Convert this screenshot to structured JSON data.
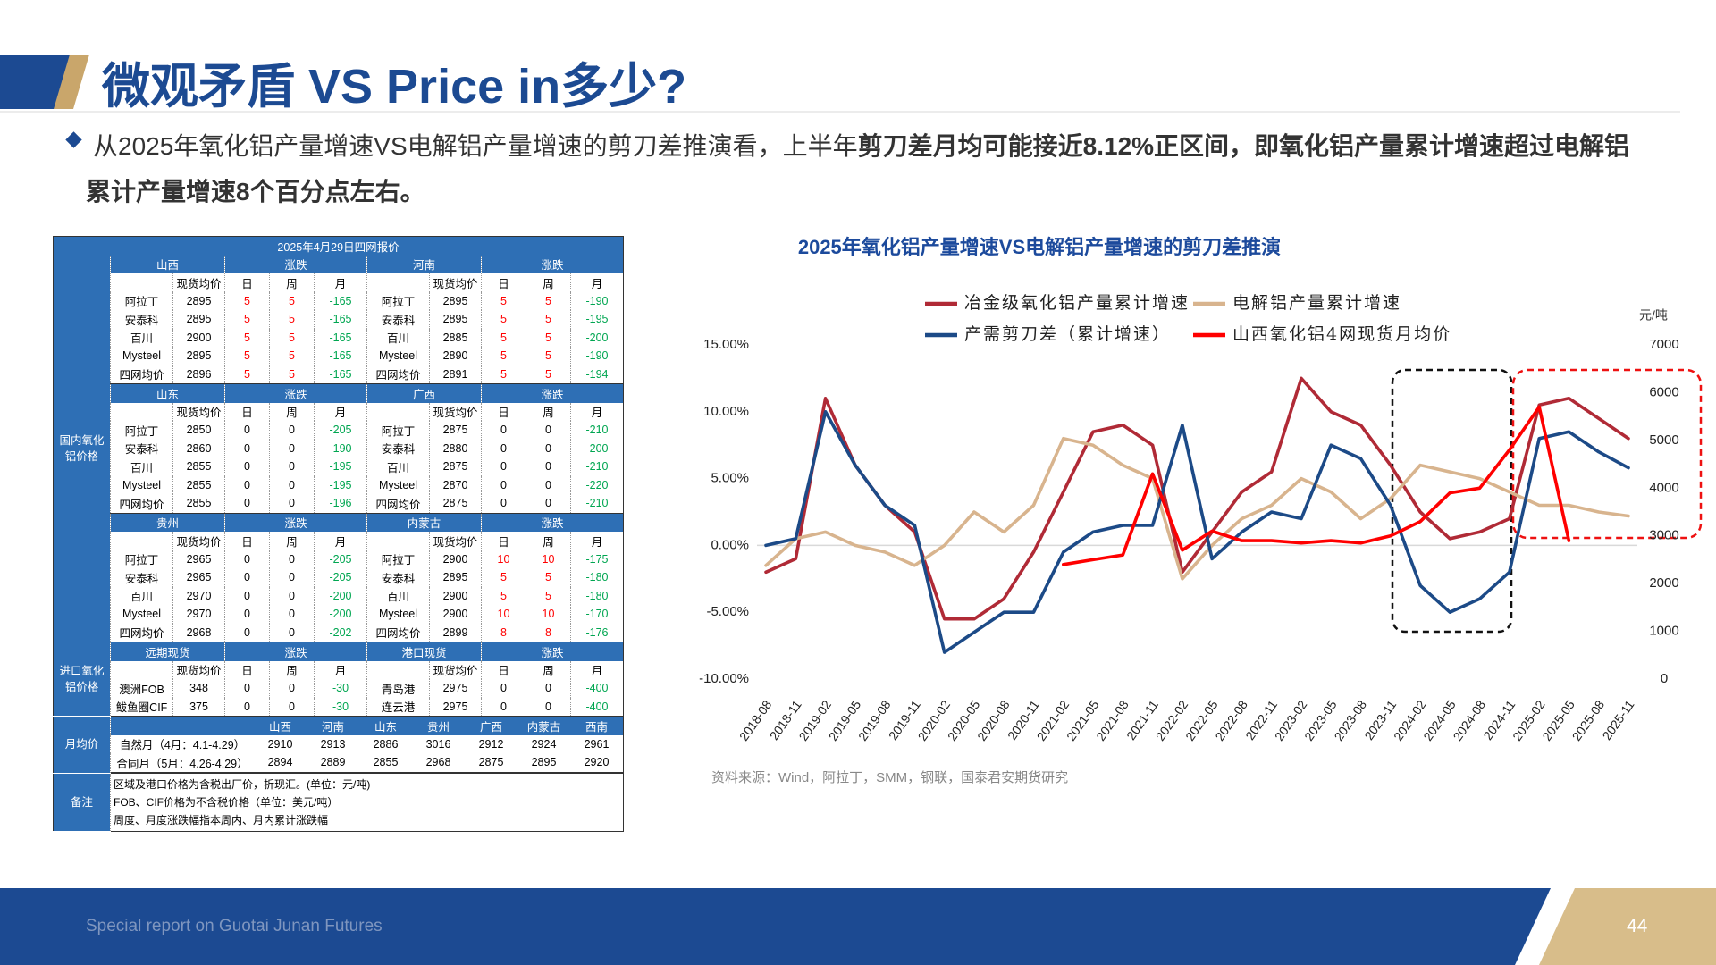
{
  "header": {
    "title": "微观矛盾 VS Price in多少?",
    "bullet": [
      {
        "text": "从2025年氧化铝产量增速VS电解铝产量增速的剪刀差推演看，上半年",
        "bold": false
      },
      {
        "text": "剪刀差月均可能接近8.12%正区间，即氧化铝产量累计增速超过电解铝",
        "bold": true
      },
      {
        "text": "累计产量增速8个百分点左右。",
        "bold": true
      }
    ]
  },
  "table": {
    "title": "2025年4月29日四网报价",
    "groups": [
      {
        "label": "国内氧化铝价格",
        "sections": [
          {
            "regions": [
              "山西",
              "河南"
            ],
            "change": "涨跌",
            "columns": [
              "现货均价",
              "日",
              "周",
              "月"
            ],
            "rows": [
              {
                "left": [
                  "阿拉丁",
                  2895,
                  5,
                  5,
                  -165
                ],
                "right": [
                  "阿拉丁",
                  2895,
                  5,
                  5,
                  -190
                ]
              },
              {
                "left": [
                  "安泰科",
                  2895,
                  5,
                  5,
                  -165
                ],
                "right": [
                  "安泰科",
                  2895,
                  5,
                  5,
                  -195
                ]
              },
              {
                "left": [
                  "百川",
                  2900,
                  5,
                  5,
                  -165
                ],
                "right": [
                  "百川",
                  2885,
                  5,
                  5,
                  -200
                ]
              },
              {
                "left": [
                  "Mysteel",
                  2895,
                  5,
                  5,
                  -165
                ],
                "right": [
                  "Mysteel",
                  2890,
                  5,
                  5,
                  -190
                ]
              },
              {
                "left": [
                  "四网均价",
                  2896,
                  5,
                  5,
                  -165
                ],
                "right": [
                  "四网均价",
                  2891,
                  5,
                  5,
                  -194
                ]
              }
            ]
          },
          {
            "regions": [
              "山东",
              "广西"
            ],
            "change": "涨跌",
            "columns": [
              "现货均价",
              "日",
              "周",
              "月"
            ],
            "rows": [
              {
                "left": [
                  "阿拉丁",
                  2850,
                  0,
                  0,
                  -205
                ],
                "right": [
                  "阿拉丁",
                  2875,
                  0,
                  0,
                  -210
                ]
              },
              {
                "left": [
                  "安泰科",
                  2860,
                  0,
                  0,
                  -190
                ],
                "right": [
                  "安泰科",
                  2880,
                  0,
                  0,
                  -200
                ]
              },
              {
                "left": [
                  "百川",
                  2855,
                  0,
                  0,
                  -195
                ],
                "right": [
                  "百川",
                  2875,
                  0,
                  0,
                  -210
                ]
              },
              {
                "left": [
                  "Mysteel",
                  2855,
                  0,
                  0,
                  -195
                ],
                "right": [
                  "Mysteel",
                  2870,
                  0,
                  0,
                  -220
                ]
              },
              {
                "left": [
                  "四网均价",
                  2855,
                  0,
                  0,
                  -196
                ],
                "right": [
                  "四网均价",
                  2875,
                  0,
                  0,
                  -210
                ]
              }
            ]
          },
          {
            "regions": [
              "贵州",
              "内蒙古"
            ],
            "change": "涨跌",
            "columns": [
              "现货均价",
              "日",
              "周",
              "月"
            ],
            "rows": [
              {
                "left": [
                  "阿拉丁",
                  2965,
                  0,
                  0,
                  -205
                ],
                "right": [
                  "阿拉丁",
                  2900,
                  10,
                  10,
                  -175
                ]
              },
              {
                "left": [
                  "安泰科",
                  2965,
                  0,
                  0,
                  -205
                ],
                "right": [
                  "安泰科",
                  2895,
                  5,
                  5,
                  -180
                ]
              },
              {
                "left": [
                  "百川",
                  2970,
                  0,
                  0,
                  -200
                ],
                "right": [
                  "百川",
                  2900,
                  5,
                  5,
                  -180
                ]
              },
              {
                "left": [
                  "Mysteel",
                  2970,
                  0,
                  0,
                  -200
                ],
                "right": [
                  "Mysteel",
                  2900,
                  10,
                  10,
                  -170
                ]
              },
              {
                "left": [
                  "四网均价",
                  2968,
                  0,
                  0,
                  -202
                ],
                "right": [
                  "四网均价",
                  2899,
                  8,
                  8,
                  -176
                ]
              }
            ]
          }
        ]
      },
      {
        "label": "进口氧化铝价格",
        "sections": [
          {
            "regions": [
              "远期现货",
              "港口现货"
            ],
            "change": "涨跌",
            "columns": [
              "现货均价",
              "日",
              "周",
              "月"
            ],
            "rows": [
              {
                "left": [
                  "澳洲FOB",
                  348,
                  0,
                  0,
                  -30
                ],
                "right": [
                  "青岛港",
                  2975,
                  0,
                  0,
                  -400
                ]
              },
              {
                "left": [
                  "鲅鱼圈CIF",
                  375,
                  0,
                  0,
                  -30
                ],
                "right": [
                  "连云港",
                  2975,
                  0,
                  0,
                  -400
                ]
              }
            ]
          }
        ]
      }
    ],
    "monthly": {
      "label": "月均价",
      "regions": [
        "山西",
        "河南",
        "山东",
        "贵州",
        "广西",
        "内蒙古",
        "西南"
      ],
      "rows": [
        {
          "name": "自然月（4月：4.1-4.29）",
          "values": [
            2910,
            2913,
            2886,
            3016,
            2912,
            2924,
            2961
          ]
        },
        {
          "name": "合同月（5月：4.26-4.29）",
          "values": [
            2894,
            2889,
            2855,
            2968,
            2875,
            2895,
            2920
          ]
        }
      ]
    },
    "notes": {
      "label": "备注",
      "lines": [
        "区域及港口价格为含税出厂价，折现汇。(单位：元/吨)",
        "FOB、CIF价格为不含税价格（单位：美元/吨）",
        "周度、月度涨跌幅指本周内、月内累计涨跌幅"
      ]
    }
  },
  "chart_data": {
    "type": "line",
    "title": "2025年氧化铝产量增速VS电解铝产量增速的剪刀差推演",
    "categories": [
      "2018-08",
      "2018-11",
      "2019-02",
      "2019-05",
      "2019-08",
      "2019-11",
      "2020-02",
      "2020-05",
      "2020-08",
      "2020-11",
      "2021-02",
      "2021-05",
      "2021-08",
      "2021-11",
      "2022-02",
      "2022-05",
      "2022-08",
      "2022-11",
      "2023-02",
      "2023-05",
      "2023-08",
      "2023-11",
      "2024-02",
      "2024-05",
      "2024-08",
      "2024-11",
      "2025-02",
      "2025-05",
      "2025-08",
      "2025-11"
    ],
    "series": [
      {
        "name": "冶金级氧化铝产量累计增速",
        "color": "#b02a36",
        "values": [
          -2,
          -1,
          11,
          6,
          3,
          1,
          -5.5,
          -5.5,
          -4,
          -0.5,
          4,
          8.5,
          9,
          7.5,
          -2,
          1,
          4,
          5.5,
          12.5,
          10,
          9,
          6,
          2.5,
          0.5,
          1,
          2,
          10.5,
          11,
          9.5,
          8
        ]
      },
      {
        "name": "电解铝产量累计增速",
        "color": "#d8b48e",
        "values": [
          -1.5,
          0.5,
          1,
          0,
          -0.5,
          -1.5,
          0,
          2.5,
          1,
          3,
          8,
          7.5,
          6,
          5,
          -2.5,
          0,
          2,
          3,
          5,
          4,
          2,
          3.5,
          6,
          5.5,
          5,
          4,
          3,
          3,
          2.5,
          2.2
        ]
      },
      {
        "name": "产需剪刀差（累计增速）",
        "color": "#1c4a87",
        "values": [
          0,
          0.5,
          10,
          6,
          3,
          1.5,
          -8,
          -6.5,
          -5,
          -5,
          -0.5,
          1,
          1.5,
          1.5,
          9,
          -1,
          1,
          2.5,
          2,
          7.5,
          6.5,
          3,
          -3,
          -5,
          -4,
          -2,
          8,
          8.5,
          7,
          5.8
        ]
      },
      {
        "name": "山西氧化铝4网现货月均价",
        "color": "#ff0000",
        "axis": "y2",
        "values": [
          null,
          null,
          null,
          null,
          null,
          null,
          null,
          null,
          null,
          null,
          2400,
          2500,
          2600,
          4300,
          2700,
          3100,
          2900,
          2900,
          2850,
          2900,
          2850,
          3000,
          3300,
          3900,
          4000,
          4800,
          5700,
          2900,
          null,
          null
        ]
      }
    ],
    "ylim": [
      -10,
      15
    ],
    "yticks": [
      {
        "value": -10,
        "label": "-10.00%"
      },
      {
        "value": -5,
        "label": "-5.00%"
      },
      {
        "value": 0,
        "label": "0.00%"
      },
      {
        "value": 5,
        "label": "5.00%"
      },
      {
        "value": 10,
        "label": "10.00%"
      },
      {
        "value": 15,
        "label": "15.00%"
      }
    ],
    "y2lim": [
      0,
      7000
    ],
    "y2ticks": [
      0,
      1000,
      2000,
      3000,
      4000,
      5000,
      6000,
      7000
    ],
    "y2label": "元/吨",
    "source": "资料来源：Wind，阿拉丁，SMM，钢联，国泰君安期货研究"
  },
  "footer": {
    "text": "Special report on Guotai Junan Futures",
    "page": "44"
  }
}
